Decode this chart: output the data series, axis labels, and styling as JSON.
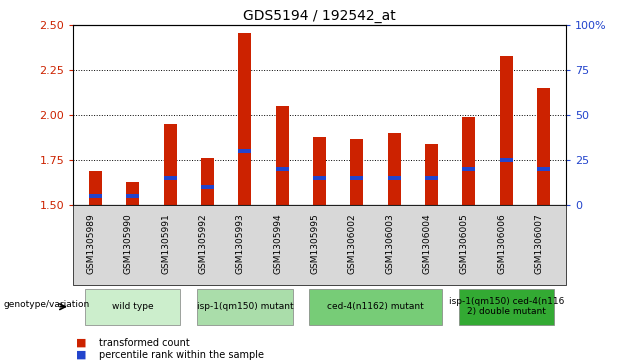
{
  "title": "GDS5194 / 192542_at",
  "samples": [
    "GSM1305989",
    "GSM1305990",
    "GSM1305991",
    "GSM1305992",
    "GSM1305993",
    "GSM1305994",
    "GSM1305995",
    "GSM1306002",
    "GSM1306003",
    "GSM1306004",
    "GSM1306005",
    "GSM1306006",
    "GSM1306007"
  ],
  "bar_values": [
    1.69,
    1.63,
    1.95,
    1.76,
    2.46,
    2.05,
    1.88,
    1.87,
    1.9,
    1.84,
    1.99,
    2.33,
    2.15
  ],
  "percentile_values": [
    5,
    5,
    15,
    10,
    30,
    20,
    15,
    15,
    15,
    15,
    20,
    25,
    20
  ],
  "ymin": 1.5,
  "ymax": 2.5,
  "yticks": [
    1.5,
    1.75,
    2.0,
    2.25,
    2.5
  ],
  "right_yticks": [
    0,
    25,
    50,
    75,
    100
  ],
  "genotype_groups": [
    {
      "label": "wild type",
      "start": 0,
      "end": 3
    },
    {
      "label": "isp-1(qm150) mutant",
      "start": 3,
      "end": 6
    },
    {
      "label": "ced-4(n1162) mutant",
      "start": 6,
      "end": 10
    },
    {
      "label": "isp-1(qm150) ced-4(n116\n2) double mutant",
      "start": 10,
      "end": 13
    }
  ],
  "geno_colors": [
    "#cceecc",
    "#aaddaa",
    "#77cc77",
    "#33aa33"
  ],
  "bar_color": "#cc2200",
  "percentile_color": "#2244cc",
  "left_tick_color": "#cc2200",
  "right_tick_color": "#2244cc",
  "genotype_label": "genotype/variation",
  "legend_items": [
    {
      "label": "transformed count",
      "color": "#cc2200"
    },
    {
      "label": "percentile rank within the sample",
      "color": "#2244cc"
    }
  ],
  "bar_width": 0.35
}
